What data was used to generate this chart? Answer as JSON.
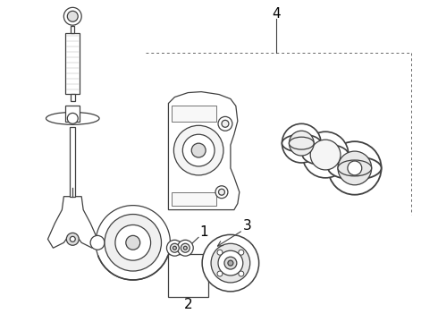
{
  "background_color": "#ffffff",
  "line_color": "#404040",
  "label_color": "#000000",
  "figsize": [
    4.9,
    3.6
  ],
  "dpi": 100,
  "lw": 0.9
}
